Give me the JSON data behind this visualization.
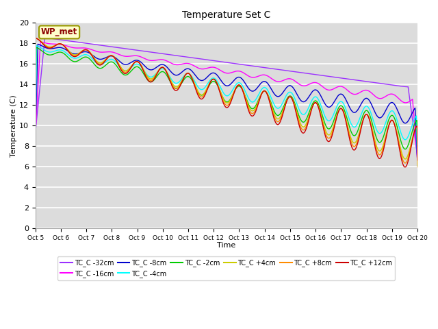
{
  "title": "Temperature Set C",
  "xlabel": "Time",
  "ylabel": "Temperature (C)",
  "ylim": [
    0,
    20
  ],
  "xlim": [
    0,
    15
  ],
  "bg_color": "#dcdcdc",
  "fig_color": "#ffffff",
  "xtick_labels": [
    "Oct 5",
    "Oct 6",
    "Oct 7",
    "Oct 8",
    "Oct 9",
    "Oct 10",
    "Oct 11",
    "Oct 12",
    "Oct 13",
    "Oct 14",
    "Oct 15",
    "Oct 16",
    "Oct 17",
    "Oct 18",
    "Oct 19",
    "Oct 20"
  ],
  "series_colors": {
    "TC_C -32cm": "#9b30ff",
    "TC_C -16cm": "#ff00ff",
    "TC_C -8cm": "#0000cd",
    "TC_C -4cm": "#00ffff",
    "TC_C -2cm": "#00cc00",
    "TC_C +4cm": "#cccc00",
    "TC_C +8cm": "#ff8c00",
    "TC_C +12cm": "#cc0000"
  },
  "annotation_text": "WP_met",
  "annotation_bg": "#ffffcc",
  "annotation_border": "#999900"
}
